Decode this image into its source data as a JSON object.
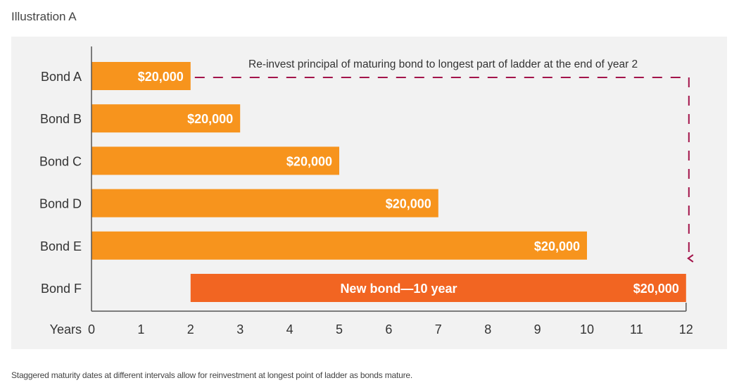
{
  "illustration_title": "Illustration A",
  "caption": "Staggered maturity dates at different intervals allow for reinvestment at longest point of ladder as bonds mature.",
  "colors": {
    "bar": "#f7941d",
    "new_bar": "#f26522",
    "arrow": "#a3144a",
    "axis": "#555555",
    "panel": "#f2f2f2",
    "text": "#333333"
  },
  "chart_data": {
    "type": "bar",
    "orientation": "horizontal",
    "xlabel": "Years",
    "xlim": [
      0,
      12
    ],
    "x_ticks": [
      "0",
      "1",
      "2",
      "3",
      "4",
      "5",
      "6",
      "7",
      "8",
      "9",
      "10",
      "11",
      "12"
    ],
    "bars": [
      {
        "category": "Bond A",
        "start": 0,
        "end": 2,
        "label": "$20,000"
      },
      {
        "category": "Bond B",
        "start": 0,
        "end": 3,
        "label": "$20,000"
      },
      {
        "category": "Bond C",
        "start": 0,
        "end": 5,
        "label": "$20,000"
      },
      {
        "category": "Bond D",
        "start": 0,
        "end": 7,
        "label": "$20,000"
      },
      {
        "category": "Bond E",
        "start": 0,
        "end": 10,
        "label": "$20,000"
      },
      {
        "category": "Bond F",
        "start": 2,
        "end": 12,
        "label": "$20,000",
        "inner_label": "New bond—10 year",
        "highlight": true
      }
    ],
    "annotation": "Re-invest principal of maturing bond to longest part of ladder at the end of year 2"
  }
}
